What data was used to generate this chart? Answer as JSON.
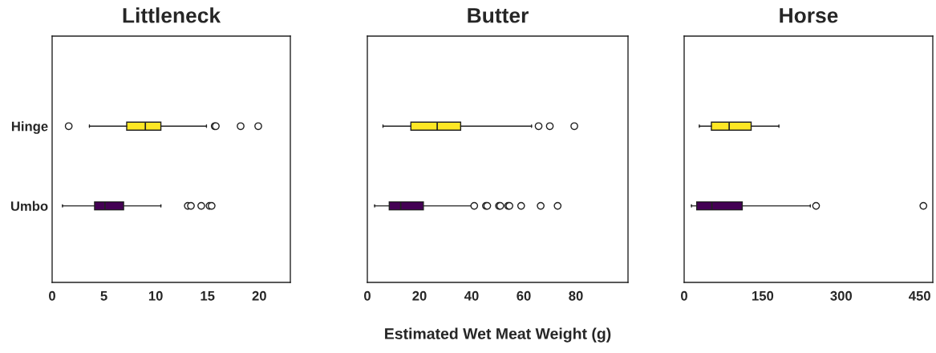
{
  "chart_data": [
    {
      "type": "box",
      "orientation": "horizontal",
      "title": "Littleneck",
      "categories": [
        "Hinge",
        "Umbo"
      ],
      "colors": [
        "#fde725",
        "#440154"
      ],
      "boxes": [
        {
          "low": 3.6,
          "q1": 7.2,
          "median": 9.0,
          "q3": 10.5,
          "high": 14.9,
          "outliers": [
            1.6,
            15.7,
            15.8,
            18.2,
            19.9
          ]
        },
        {
          "low": 1.0,
          "q1": 4.1,
          "median": 5.1,
          "q3": 6.9,
          "high": 10.5,
          "outliers": [
            13.1,
            13.4,
            14.4,
            15.2,
            15.4
          ]
        }
      ],
      "xlim": [
        0,
        23
      ],
      "xticks": [
        0,
        5,
        10,
        15,
        20
      ],
      "grid": false
    },
    {
      "type": "box",
      "orientation": "horizontal",
      "title": "Butter",
      "xlabel": "Estimated Wet Meat Weight (g)",
      "colors": [
        "#fde725",
        "#440154"
      ],
      "boxes": [
        {
          "low": 6,
          "q1": 16.7,
          "median": 26.8,
          "q3": 35.8,
          "high": 63,
          "outliers": [
            65.7,
            70,
            79.4
          ]
        },
        {
          "low": 2.8,
          "q1": 8.4,
          "median": 12.8,
          "q3": 21.5,
          "high": 40,
          "outliers": [
            41,
            45.5,
            46,
            50.5,
            51,
            54,
            54.5,
            59,
            66.5,
            73
          ]
        }
      ],
      "xlim": [
        0,
        100
      ],
      "xticks": [
        0,
        20,
        40,
        60,
        80
      ],
      "grid": false
    },
    {
      "type": "box",
      "orientation": "horizontal",
      "title": "Horse",
      "colors": [
        "#fde725",
        "#440154"
      ],
      "boxes": [
        {
          "low": 29,
          "q1": 52,
          "median": 86,
          "q3": 128,
          "high": 181
        },
        {
          "low": 14,
          "q1": 24,
          "median": 53,
          "q3": 111,
          "high": 241,
          "outliers": [
            252,
            457
          ]
        }
      ],
      "xlim": [
        0,
        475
      ],
      "xticks": [
        0,
        150,
        300,
        450
      ],
      "grid": false
    }
  ]
}
